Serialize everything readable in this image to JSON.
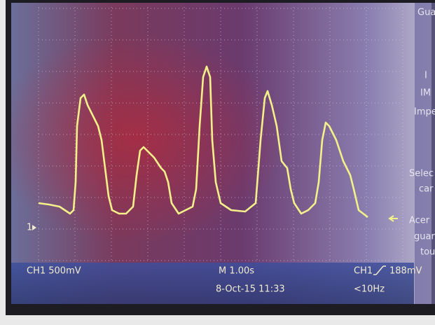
{
  "screen": {
    "channel_scale": "CH1 500mV",
    "timebase": "M 1.00s",
    "trigger_source": "CH1",
    "trigger_level": "188mV",
    "date_time": "8-Oct-15 11:33",
    "frequency": "<10Hz",
    "channel_marker": "1",
    "menu": [
      "Gua",
      "I",
      "IM",
      "Impe",
      "Selec",
      "car",
      "Acer",
      "guar",
      "tou"
    ]
  }
}
